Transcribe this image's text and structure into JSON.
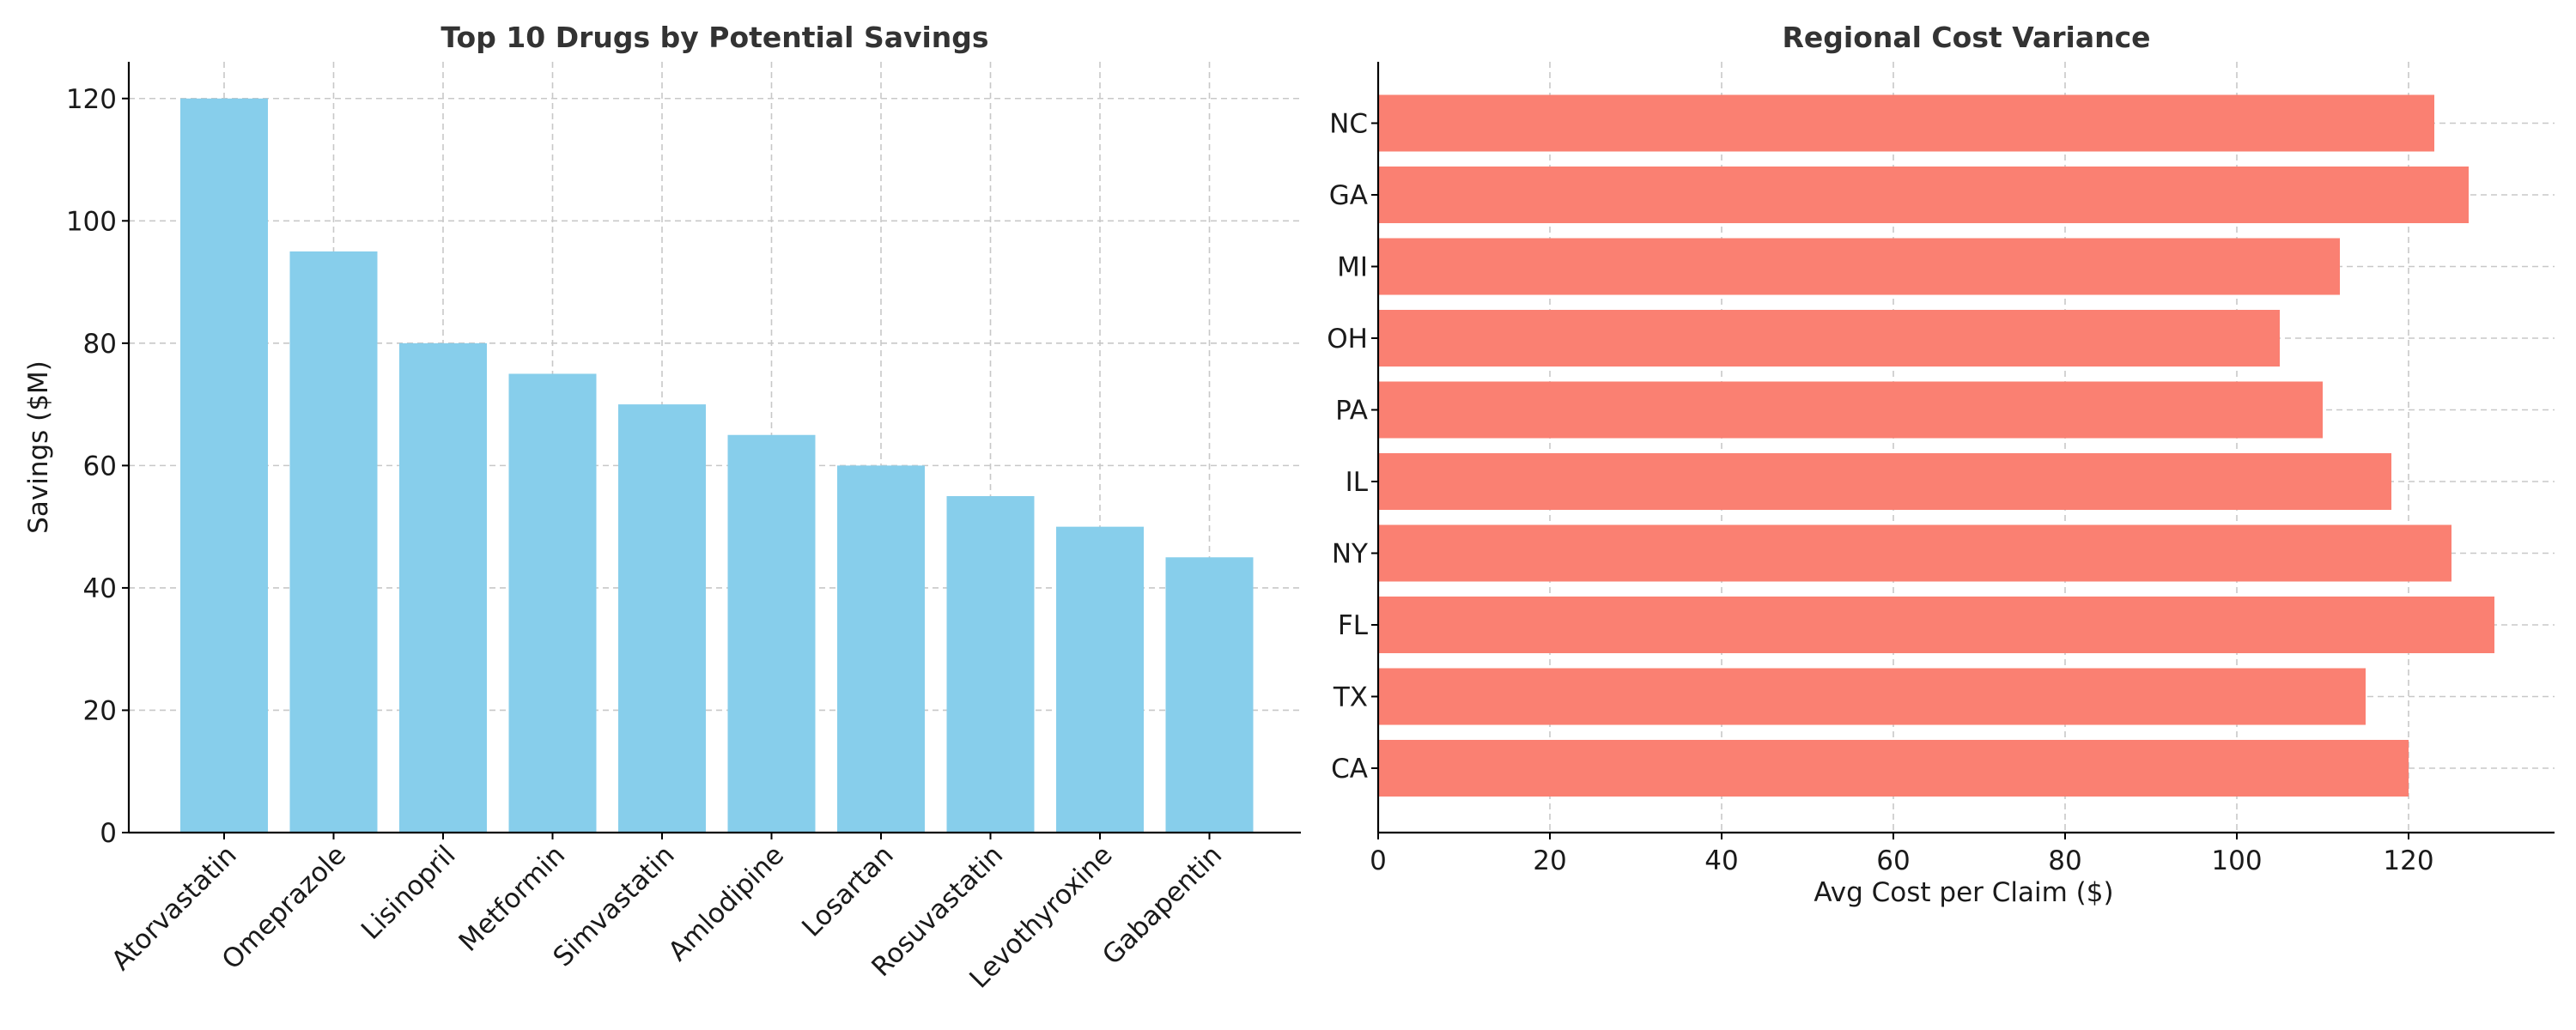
{
  "colors": {
    "left_bars": "#87CEEB",
    "right_bars": "#FA8072"
  },
  "chart_data": [
    {
      "type": "bar",
      "orientation": "vertical",
      "title": "Top 10 Drugs by Potential Savings",
      "xlabel": "",
      "ylabel": "Savings ($M)",
      "categories": [
        "Atorvastatin",
        "Omeprazole",
        "Lisinopril",
        "Metformin",
        "Simvastatin",
        "Amlodipine",
        "Losartan",
        "Rosuvastatin",
        "Levothyroxine",
        "Gabapentin"
      ],
      "values": [
        120,
        95,
        80,
        75,
        70,
        65,
        60,
        55,
        50,
        45
      ],
      "ylim": [
        0,
        126
      ],
      "yticks": [
        0,
        20,
        40,
        60,
        80,
        100,
        120
      ],
      "grid": true,
      "color": "#87CEEB"
    },
    {
      "type": "bar",
      "orientation": "horizontal",
      "title": "Regional Cost Variance",
      "xlabel": "Avg Cost per Claim ($)",
      "ylabel": "",
      "categories": [
        "CA",
        "TX",
        "FL",
        "NY",
        "IL",
        "PA",
        "OH",
        "MI",
        "GA",
        "NC"
      ],
      "values": [
        120,
        115,
        130,
        125,
        118,
        110,
        105,
        112,
        127,
        123
      ],
      "xlim": [
        0,
        137
      ],
      "xticks": [
        0,
        20,
        40,
        60,
        80,
        100,
        120
      ],
      "grid": true,
      "color": "#FA8072"
    }
  ]
}
